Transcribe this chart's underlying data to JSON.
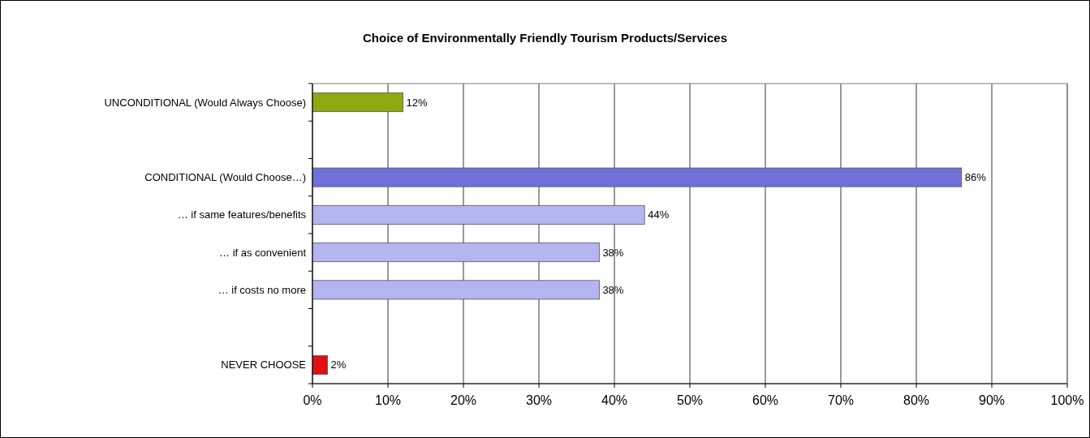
{
  "chart_data": {
    "type": "bar",
    "orientation": "horizontal",
    "title": "Choice of Environmentally Friendly Tourism Products/Services",
    "categories": [
      "UNCONDITIONAL (Would Always Choose)",
      null,
      "CONDITIONAL (Would Choose…)",
      "… if same features/benefits",
      "… if as convenient",
      "… if costs no more",
      null,
      "NEVER CHOOSE"
    ],
    "values": [
      12,
      null,
      86,
      44,
      38,
      38,
      null,
      2
    ],
    "colors": [
      "#8caa10",
      null,
      "#7070d8",
      "#b4b4f0",
      "#b4b4f0",
      "#b4b4f0",
      null,
      "#e01010"
    ],
    "xlim": [
      0,
      100
    ],
    "xticks": [
      {
        "value": 0,
        "label": "0%"
      },
      {
        "value": 10,
        "label": "10%"
      },
      {
        "value": 20,
        "label": "20%"
      },
      {
        "value": 30,
        "label": "30%"
      },
      {
        "value": 40,
        "label": "40%"
      },
      {
        "value": 50,
        "label": "50%"
      },
      {
        "value": 60,
        "label": "60%"
      },
      {
        "value": 70,
        "label": "70%"
      },
      {
        "value": 80,
        "label": "80%"
      },
      {
        "value": 90,
        "label": "90%"
      },
      {
        "value": 100,
        "label": "100%"
      }
    ],
    "value_labels": [
      "12%",
      null,
      "86%",
      "44%",
      "38%",
      "38%",
      null,
      "2%"
    ],
    "grid": "x"
  }
}
